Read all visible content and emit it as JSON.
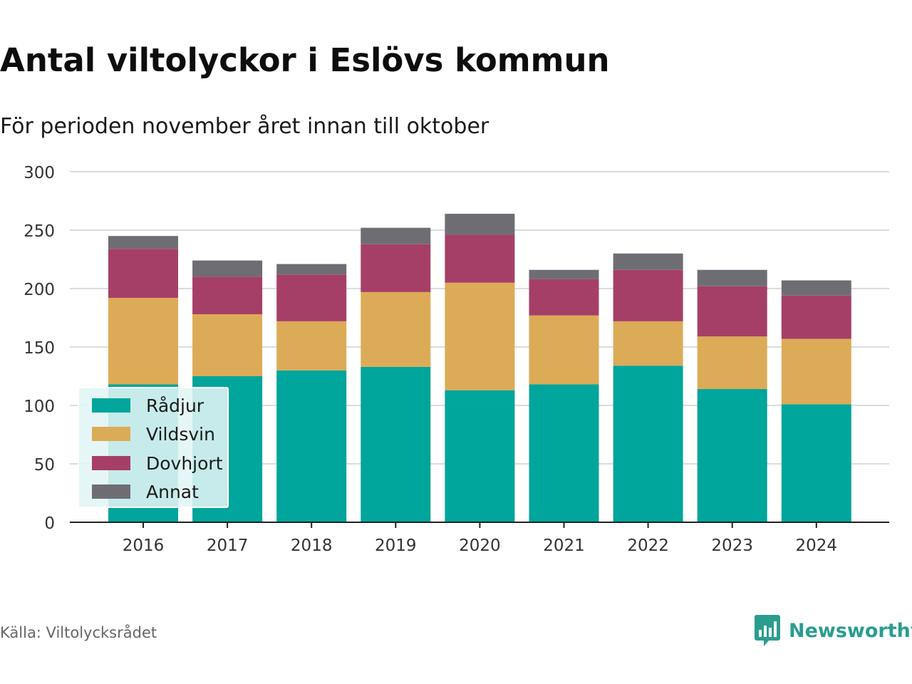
{
  "title": "Antal viltolyckor i Eslövs kommun",
  "subtitle": "För perioden november året innan till oktober",
  "source": "Källa: Viltolycksrådet",
  "brand": {
    "name": "Newsworthy",
    "icon": "newsworthy-logo-icon",
    "color": "#2a9d8f"
  },
  "chart_data": {
    "type": "bar",
    "stacked": true,
    "categories": [
      "2016",
      "2017",
      "2018",
      "2019",
      "2020",
      "2021",
      "2022",
      "2023",
      "2024"
    ],
    "series": [
      {
        "name": "Rådjur",
        "color": "#00a59b",
        "values": [
          118,
          125,
          130,
          133,
          113,
          118,
          134,
          114,
          101
        ]
      },
      {
        "name": "Vildsvin",
        "color": "#dcab57",
        "values": [
          74,
          53,
          42,
          64,
          92,
          59,
          38,
          45,
          56
        ]
      },
      {
        "name": "Dovhjort",
        "color": "#a63f68",
        "values": [
          42,
          32,
          40,
          41,
          41,
          31,
          44,
          43,
          37
        ]
      },
      {
        "name": "Annat",
        "color": "#6e6d74",
        "values": [
          11,
          14,
          9,
          14,
          18,
          8,
          14,
          14,
          13
        ]
      }
    ],
    "ylim": [
      0,
      300
    ],
    "yticks": [
      0,
      50,
      100,
      150,
      200,
      250,
      300
    ],
    "grid": true,
    "legend_position": "bottom-left",
    "xlabel": "",
    "ylabel": ""
  }
}
